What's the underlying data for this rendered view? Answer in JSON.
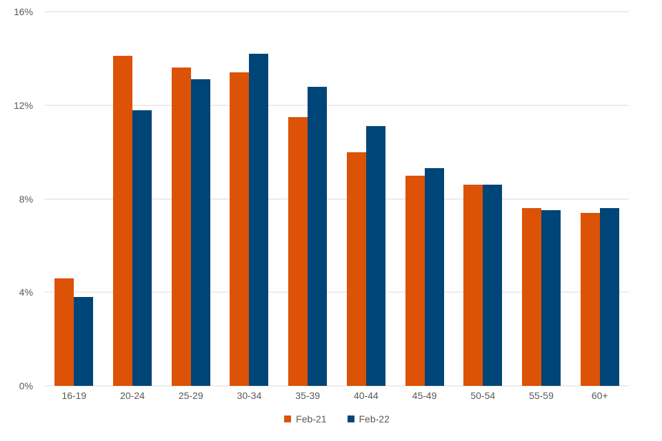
{
  "chart_data": {
    "type": "bar",
    "title": "",
    "categories": [
      "16-19",
      "20-24",
      "25-29",
      "30-34",
      "35-39",
      "40-44",
      "45-49",
      "50-54",
      "55-59",
      "60+"
    ],
    "series": [
      {
        "name": "Feb-21",
        "color": "#dc5206",
        "values": [
          4.6,
          14.1,
          13.6,
          13.4,
          11.5,
          10.0,
          9.0,
          8.6,
          7.6,
          7.4
        ]
      },
      {
        "name": "Feb-22",
        "color": "#004577",
        "values": [
          3.8,
          11.8,
          13.1,
          14.2,
          12.8,
          11.1,
          9.3,
          8.6,
          7.5,
          7.6
        ]
      }
    ],
    "xlabel": "",
    "ylabel": "",
    "ylim": [
      0,
      16
    ],
    "yticks": [
      {
        "value": 0,
        "label": "0%"
      },
      {
        "value": 4,
        "label": "4%"
      },
      {
        "value": 8,
        "label": "8%"
      },
      {
        "value": 12,
        "label": "12%"
      },
      {
        "value": 16,
        "label": "16%"
      }
    ],
    "grid": true,
    "legend_position": "bottom"
  },
  "colors": {
    "grid": "#d9d9d9",
    "axis_text": "#595959",
    "background": "#ffffff"
  }
}
